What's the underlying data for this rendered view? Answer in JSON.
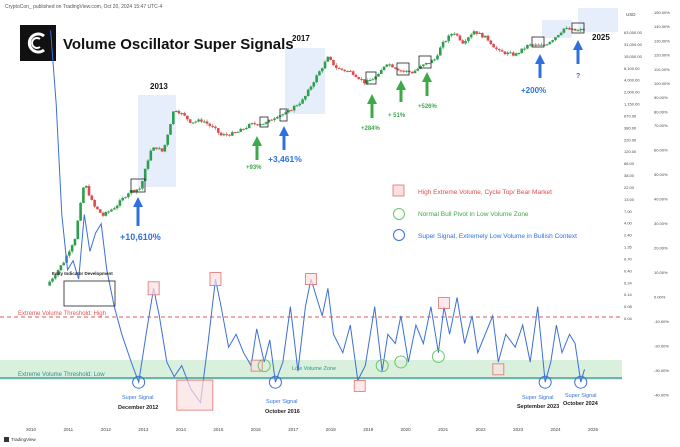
{
  "header": {
    "published": "CryptoCon_ published on TradingView.com, Oct 20, 2024 15:47 UTC-4",
    "title": "Volume Oscillator Super Signals",
    "footer_brand": "TradingView"
  },
  "colors": {
    "up": "#2e9e4e",
    "down": "#e04a4a",
    "oscillator": "#3b6fd8",
    "high_threshold": "#e05555",
    "low_threshold": "#2f8f8f",
    "low_zone_fill": "#d9f0dc",
    "cycle_box": "#e7eefb",
    "extreme_box_stroke": "#e07070",
    "extreme_box_fill": "#fbe0e0",
    "bull_pivot": "#6ac46a",
    "super_signal": "#3b6fd8",
    "arrow_blue": "#2f6fe0",
    "arrow_green": "#3ea84a"
  },
  "annotations": {
    "year_2013": "2013",
    "year_2017": "2017",
    "year_2025": "2025",
    "gain_10610": "+10,610%",
    "gain_93": "+93%",
    "gain_3461": "+3,461%",
    "gain_284": "+284%",
    "gain_51": "+ 51%",
    "gain_526": "+526%",
    "gain_200": "+200%",
    "question": "?",
    "early_dev": "Early Indicator Development",
    "high_threshold": "Extreme Volume Threshold: High",
    "low_threshold": "Extreme Volume Threshold: Low",
    "low_zone": "Low Volume Zone",
    "ss_2012_a": "Super Signal",
    "ss_2012_b": "December 2012",
    "ss_2016_a": "Super Signal",
    "ss_2016_b": "October 2016",
    "ss_2023_a": "Super Signal",
    "ss_2023_b": "September 2023",
    "ss_2024_a": "Super Signal",
    "ss_2024_b": "October 2024"
  },
  "legend": {
    "items": [
      {
        "label": "High Extreme Volume, Cycle Top/ Bear Market",
        "shape": "square"
      },
      {
        "label": "Normal Bull Pivot in Low Volume Zone",
        "shape": "circle-green"
      },
      {
        "label": "Super Signal, Extremely Low Volume in Bullish Context",
        "shape": "circle-blue"
      }
    ]
  },
  "chart_data": [
    {
      "type": "candlestick",
      "title": "Volume Oscillator Super Signals",
      "y_scale": "log",
      "y_unit": "USD",
      "y_ticks": [
        "63,000.00",
        "31,000.00",
        "15,000.00",
        "8,100.00",
        "4,000.00",
        "2,000.00",
        "1,150.00",
        "670.00",
        "380.00",
        "220.00",
        "120.00",
        "68.00",
        "38.00",
        "22.00",
        "13.00",
        "7.00",
        "4.00",
        "2.40",
        "1.35",
        "0.70",
        "0.40",
        "0.24",
        "0.14",
        "0.08",
        "0.04"
      ],
      "x_ticks": [
        "2010",
        "2011",
        "2012",
        "2013",
        "2014",
        "2015",
        "2016",
        "2017",
        "2018",
        "2019",
        "2020",
        "2021",
        "2022",
        "2023",
        "2024",
        "2025"
      ],
      "close_path": [
        [
          "2010.45",
          0.07
        ],
        [
          "2010.9",
          0.25
        ],
        [
          "2011.2",
          0.9
        ],
        [
          "2011.45",
          18
        ],
        [
          "2011.7",
          5
        ],
        [
          "2011.95",
          3
        ],
        [
          "2012.3",
          5
        ],
        [
          "2012.65",
          11
        ],
        [
          "2012.95",
          13
        ],
        [
          "2013.2",
          90
        ],
        [
          "2013.35",
          120
        ],
        [
          "2013.55",
          90
        ],
        [
          "2013.85",
          950
        ],
        [
          "2014.05",
          700
        ],
        [
          "2014.3",
          450
        ],
        [
          "2014.6",
          500
        ],
        [
          "2014.95",
          300
        ],
        [
          "2015.1",
          220
        ],
        [
          "2015.5",
          250
        ],
        [
          "2015.9",
          400
        ],
        [
          "2016.3",
          430
        ],
        [
          "2016.6",
          650
        ],
        [
          "2016.85",
          720
        ],
        [
          "2017.0",
          960
        ],
        [
          "2017.3",
          1500
        ],
        [
          "2017.6",
          4500
        ],
        [
          "2017.95",
          14000
        ],
        [
          "2018.2",
          8000
        ],
        [
          "2018.6",
          6500
        ],
        [
          "2018.95",
          3700
        ],
        [
          "2019.3",
          5500
        ],
        [
          "2019.5",
          11000
        ],
        [
          "2019.9",
          7200
        ],
        [
          "2020.2",
          6500
        ],
        [
          "2020.5",
          9500
        ],
        [
          "2020.8",
          13000
        ],
        [
          "2021.0",
          29000
        ],
        [
          "2021.3",
          58000
        ],
        [
          "2021.55",
          33000
        ],
        [
          "2021.85",
          60000
        ],
        [
          "2022.2",
          40000
        ],
        [
          "2022.5",
          20000
        ],
        [
          "2022.95",
          16500
        ],
        [
          "2023.3",
          28000
        ],
        [
          "2023.7",
          27000
        ],
        [
          "2024.0",
          42000
        ],
        [
          "2024.25",
          68000
        ],
        [
          "2024.6",
          60000
        ],
        [
          "2024.8",
          66000
        ]
      ]
    },
    {
      "type": "line",
      "series_name": "Volume Oscillator",
      "y_ticks": [
        "70.00%",
        "60.00%",
        "50.00%",
        "40.00%",
        "30.00%",
        "20.00%",
        "10.00%",
        "0.00%",
        "-10.00%",
        "-20.00%",
        "-30.00%",
        "-40.00%"
      ],
      "y_ticks_lower": [
        "150.00%",
        "140.00%",
        "130.00%",
        "120.00%",
        "110.00%",
        "100.00%",
        "90.00%",
        "80.00%"
      ],
      "y_range": [
        -45,
        170
      ],
      "high_threshold": 20,
      "low_threshold": -30,
      "low_zone": [
        -30,
        -15
      ],
      "values": [
        [
          "2010.55",
          160
        ],
        [
          "2010.7",
          120
        ],
        [
          "2010.85",
          60
        ],
        [
          "2011.0",
          30
        ],
        [
          "2011.15",
          35
        ],
        [
          "2011.3",
          25
        ],
        [
          "2011.45",
          60
        ],
        [
          "2011.6",
          40
        ],
        [
          "2011.75",
          50
        ],
        [
          "2011.9",
          55
        ],
        [
          "2012.05",
          30
        ],
        [
          "2012.25",
          10
        ],
        [
          "2012.45",
          -5
        ],
        [
          "2012.7",
          -20
        ],
        [
          "2012.9",
          -31
        ],
        [
          "2013.1",
          -5
        ],
        [
          "2013.3",
          20
        ],
        [
          "2013.45",
          5
        ],
        [
          "2013.65",
          -20
        ],
        [
          "2013.85",
          -28
        ],
        [
          "2014.05",
          -22
        ],
        [
          "2014.3",
          -35
        ],
        [
          "2014.55",
          -42
        ],
        [
          "2014.75",
          -10
        ],
        [
          "2014.95",
          25
        ],
        [
          "2015.1",
          10
        ],
        [
          "2015.3",
          -12
        ],
        [
          "2015.5",
          -5
        ],
        [
          "2015.7",
          -15
        ],
        [
          "2015.9",
          -22
        ],
        [
          "2016.05",
          -2
        ],
        [
          "2016.25",
          -20
        ],
        [
          "2016.4",
          -8
        ],
        [
          "2016.55",
          -31
        ],
        [
          "2016.75",
          -20
        ],
        [
          "2016.95",
          10
        ],
        [
          "2017.15",
          -25
        ],
        [
          "2017.35",
          10
        ],
        [
          "2017.5",
          25
        ],
        [
          "2017.65",
          15
        ],
        [
          "2017.8",
          5
        ],
        [
          "2017.95",
          20
        ],
        [
          "2018.1",
          -5
        ],
        [
          "2018.35",
          -15
        ],
        [
          "2018.55",
          0
        ],
        [
          "2018.75",
          -30
        ],
        [
          "2018.95",
          -22
        ],
        [
          "2019.2",
          10
        ],
        [
          "2019.4",
          -25
        ],
        [
          "2019.55",
          -5
        ],
        [
          "2019.75",
          -10
        ],
        [
          "2019.9",
          5
        ],
        [
          "2020.1",
          -20
        ],
        [
          "2020.3",
          0
        ],
        [
          "2020.5",
          -10
        ],
        [
          "2020.7",
          10
        ],
        [
          "2020.9",
          -15
        ],
        [
          "2021.05",
          10
        ],
        [
          "2021.2",
          -5
        ],
        [
          "2021.4",
          15
        ],
        [
          "2021.6",
          -10
        ],
        [
          "2021.8",
          5
        ],
        [
          "2021.95",
          -15
        ],
        [
          "2022.15",
          -5
        ],
        [
          "2022.35",
          5
        ],
        [
          "2022.5",
          -20
        ],
        [
          "2022.7",
          -5
        ],
        [
          "2022.95",
          -12
        ],
        [
          "2023.15",
          0
        ],
        [
          "2023.35",
          -20
        ],
        [
          "2023.55",
          10
        ],
        [
          "2023.75",
          -31
        ],
        [
          "2023.9",
          -20
        ],
        [
          "2024.05",
          0
        ],
        [
          "2024.2",
          -15
        ],
        [
          "2024.4",
          -5
        ],
        [
          "2024.55",
          -10
        ],
        [
          "2024.7",
          -31
        ],
        [
          "2024.8",
          -24
        ]
      ]
    }
  ]
}
